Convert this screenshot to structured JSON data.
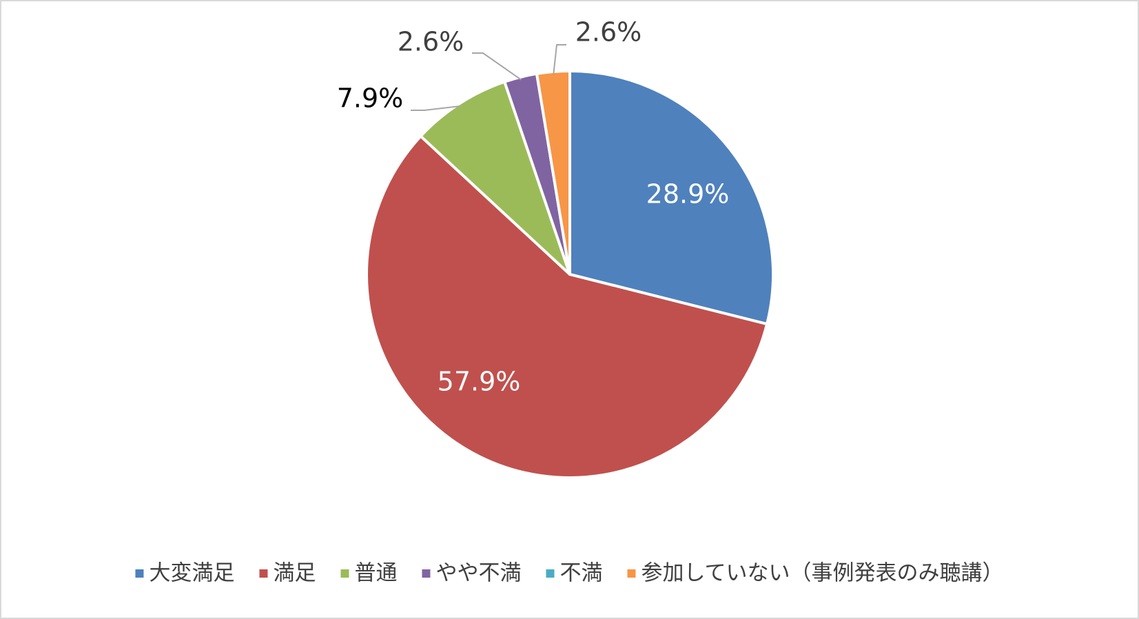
{
  "chart_data": {
    "type": "pie",
    "categories": [
      "大変満足",
      "満足",
      "普通",
      "やや不満",
      "不満",
      "参加していない（事例発表のみ聴講）"
    ],
    "values": [
      28.9,
      57.9,
      7.9,
      2.6,
      0,
      2.6
    ],
    "value_labels": [
      "28.9%",
      "57.9%",
      "7.9%",
      "2.6%",
      null,
      "2.6%"
    ],
    "colors": [
      "#4f81bd",
      "#c0504d",
      "#9bbb59",
      "#8064a2",
      "#4bacc6",
      "#f79646"
    ],
    "legend": "bottom"
  }
}
